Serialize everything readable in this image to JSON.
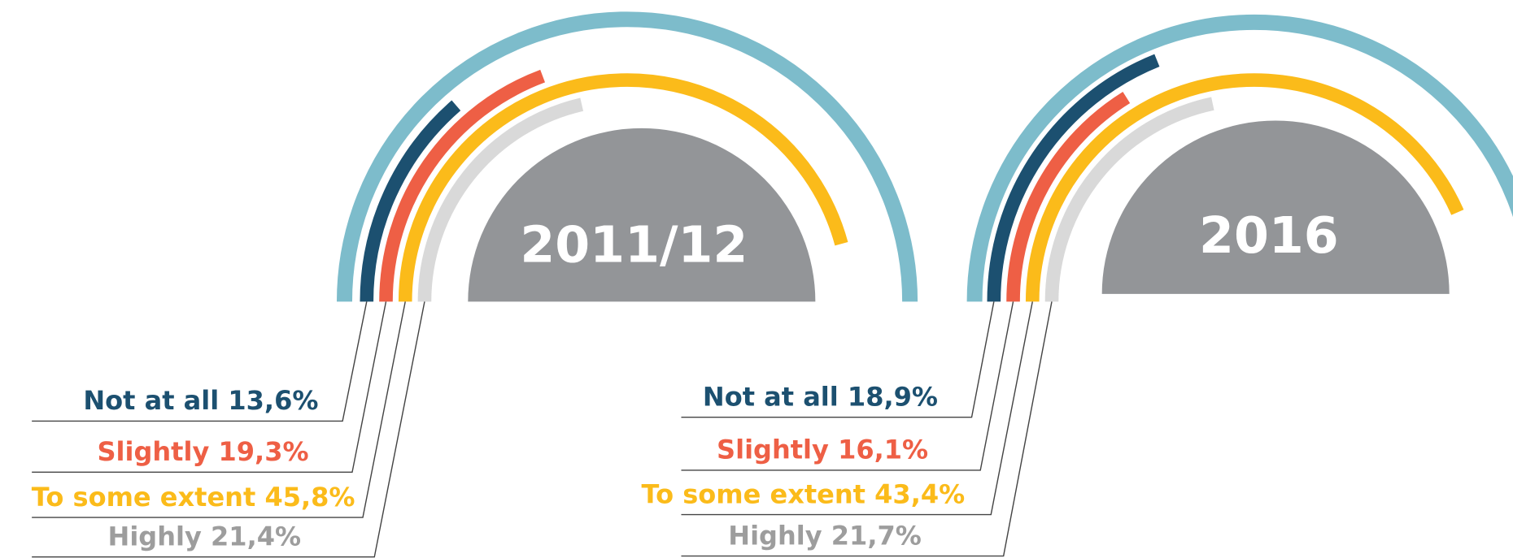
{
  "chart_data": [
    {
      "type": "radial_bar",
      "title": "2011/12",
      "categories": [
        "Not at all",
        "Slightly",
        "To some extent",
        "Highly"
      ],
      "values": [
        13.6,
        19.3,
        45.8,
        21.4
      ],
      "value_labels": [
        "13,6%",
        "19,3%",
        "45,8%",
        "21,4%"
      ],
      "colors": [
        "#1c5070",
        "#ee5f45",
        "#fbbb1a",
        "#d9d9d9"
      ],
      "label_colors": [
        "#1c5070",
        "#ee5f45",
        "#fbbb1a",
        "#9d9d9d"
      ]
    },
    {
      "type": "radial_bar",
      "title": "2016",
      "categories": [
        "Not at all",
        "Slightly",
        "To some extent",
        "Highly"
      ],
      "values": [
        18.9,
        16.1,
        43.4,
        21.7
      ],
      "value_labels": [
        "18,9%",
        "16,1%",
        "43,4%",
        "21,7%"
      ],
      "colors": [
        "#1c5070",
        "#ee5f45",
        "#fbbb1a",
        "#d9d9d9"
      ],
      "label_colors": [
        "#1c5070",
        "#ee5f45",
        "#fbbb1a",
        "#9d9d9d"
      ]
    }
  ]
}
